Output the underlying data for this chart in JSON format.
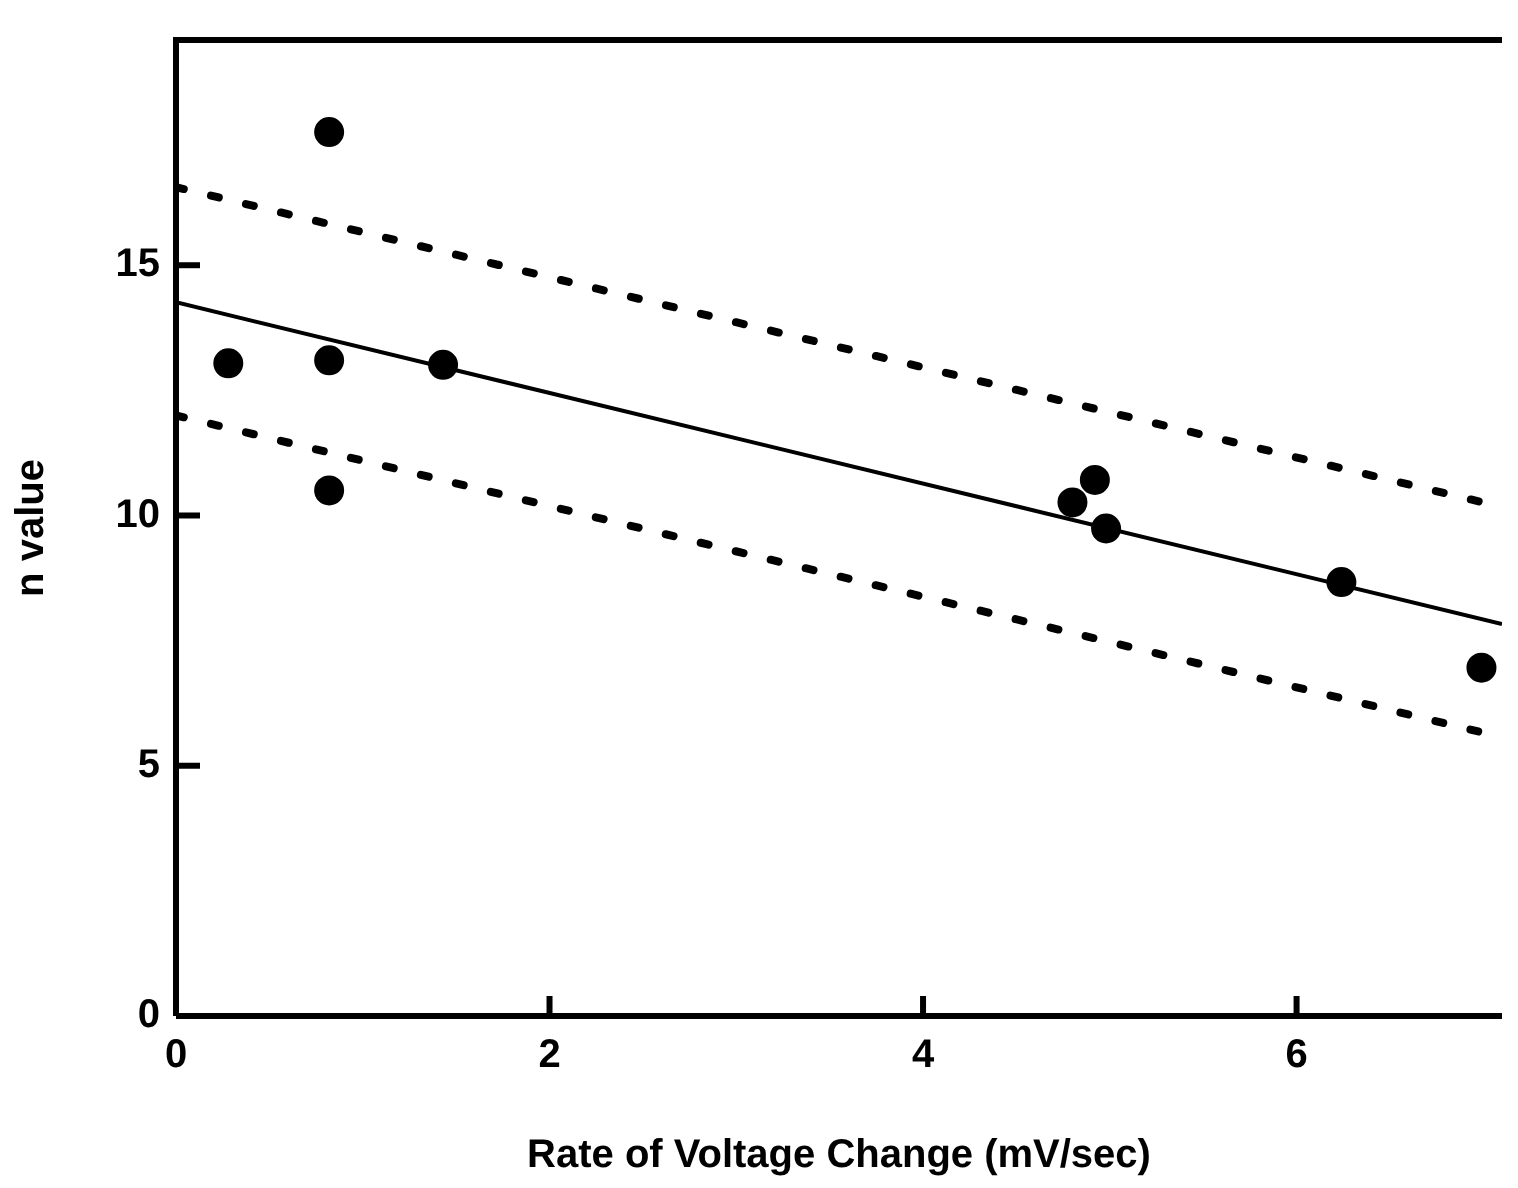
{
  "chart_data": {
    "type": "scatter",
    "xlabel": "Rate of Voltage Change (mV/sec)",
    "ylabel": "n value",
    "xlim": [
      0,
      7.1
    ],
    "ylim": [
      0,
      19.5
    ],
    "xticks": [
      0,
      2,
      4,
      6
    ],
    "yticks": [
      0,
      5,
      10,
      15
    ],
    "grid": false,
    "legend": false,
    "marker": "circle",
    "series": [
      {
        "color": "#000000",
        "x": [
          0.28,
          0.82,
          0.82,
          0.82,
          1.43,
          4.8,
          4.92,
          4.98,
          6.24,
          6.99
        ],
        "values": [
          13.04,
          17.66,
          13.1,
          10.5,
          13.01,
          10.26,
          10.71,
          9.74,
          8.67,
          6.96
        ]
      },
      {
        "type": "line",
        "color": "#000000",
        "marker": "none",
        "line_style": "solid",
        "x": [
          0,
          7.1
        ],
        "values": [
          14.26,
          7.83
        ]
      },
      {
        "type": "line",
        "color": "#000000",
        "marker": "none",
        "line_style": "dotted",
        "x": [
          0,
          7.1
        ],
        "values": [
          16.56,
          10.17
        ]
      },
      {
        "type": "line",
        "color": "#000000",
        "marker": "none",
        "line_style": "dotted",
        "x": [
          0,
          7.1
        ],
        "values": [
          12.0,
          5.57
        ]
      }
    ]
  }
}
